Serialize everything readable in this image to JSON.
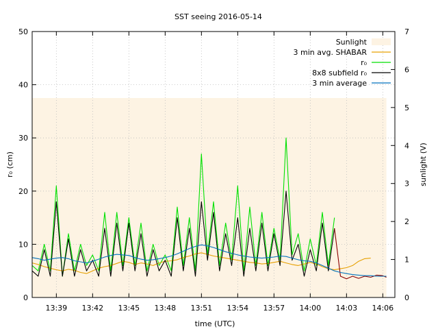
{
  "chart_data": {
    "type": "line",
    "title": "SST seeing 2016-05-14",
    "xlabel": "time (UTC)",
    "ylabel_left": "r₀ (cm)",
    "ylabel_right": "sunlight (V)",
    "xlim": [
      "13:37",
      "14:07"
    ],
    "ylim_left": [
      0,
      50
    ],
    "ylim_right": [
      0,
      7
    ],
    "x_ticks": [
      "13:39",
      "13:42",
      "13:45",
      "13:48",
      "13:51",
      "13:54",
      "13:57",
      "14:00",
      "14:03",
      "14:06"
    ],
    "y_ticks_left": [
      "0",
      "10",
      "20",
      "30",
      "40",
      "50"
    ],
    "y_ticks_right": [
      "0",
      "1",
      "2",
      "3",
      "4",
      "5",
      "6",
      "7"
    ],
    "grid": true,
    "legend_position": "top-right",
    "colors": {
      "sunlight": "#fdf3e3",
      "shabar": "#e6a000",
      "r0": "#00e000",
      "subfield": "#000000",
      "subfield_late": "#8b0000",
      "avg": "#0072bd"
    },
    "series": [
      {
        "name": "Sunlight",
        "axis": "right",
        "style": "fill",
        "x": [
          "13:37",
          "14:06.3"
        ],
        "y": [
          5.25,
          5.25
        ]
      },
      {
        "name": "3 min avg. SHABAR",
        "axis": "left",
        "x": [
          "13:37",
          "13:37.5",
          "13:38",
          "13:38.5",
          "13:39",
          "13:39.5",
          "13:40",
          "13:40.5",
          "13:41",
          "13:41.5",
          "13:42",
          "13:42.5",
          "13:43",
          "13:43.5",
          "13:44",
          "13:44.5",
          "13:45",
          "13:45.5",
          "13:46",
          "13:46.5",
          "13:47",
          "13:47.5",
          "13:48",
          "13:48.5",
          "13:49",
          "13:49.5",
          "13:50",
          "13:50.5",
          "13:51",
          "13:51.5",
          "13:52",
          "13:52.5",
          "13:53",
          "13:53.5",
          "13:54",
          "13:54.5",
          "13:55",
          "13:55.5",
          "13:56",
          "13:56.5",
          "13:57",
          "13:57.5",
          "13:58",
          "13:58.5",
          "13:59",
          "13:59.5",
          "14:00",
          "14:00.5",
          "14:01",
          "14:01.5",
          "14:02",
          "14:02.5",
          "14:03",
          "14:03.5",
          "14:04",
          "14:04.5",
          "14:05"
        ],
        "y": [
          6.5,
          6.2,
          5.8,
          5.5,
          5.2,
          5.0,
          5.3,
          5.1,
          4.7,
          4.5,
          5.0,
          5.5,
          5.8,
          6.0,
          6.4,
          6.8,
          6.6,
          6.2,
          6.5,
          6.3,
          6.0,
          6.5,
          6.8,
          6.9,
          7.1,
          7.5,
          7.8,
          8.2,
          8.4,
          8.1,
          7.8,
          7.6,
          7.4,
          7.2,
          7.0,
          6.8,
          6.6,
          6.5,
          6.3,
          6.4,
          6.6,
          6.8,
          6.5,
          6.2,
          6.0,
          6.3,
          6.6,
          6.3,
          5.8,
          5.4,
          5.2,
          5.4,
          5.6,
          6.0,
          6.8,
          7.3,
          7.4
        ]
      },
      {
        "name": "r₀",
        "axis": "left",
        "x": [
          "13:37",
          "13:37.5",
          "13:38",
          "13:38.5",
          "13:39",
          "13:39.5",
          "13:40",
          "13:40.5",
          "13:41",
          "13:41.5",
          "13:42",
          "13:42.5",
          "13:43",
          "13:43.5",
          "13:44",
          "13:44.5",
          "13:45",
          "13:45.5",
          "13:46",
          "13:46.5",
          "13:47",
          "13:47.5",
          "13:48",
          "13:48.5",
          "13:49",
          "13:49.5",
          "13:50",
          "13:50.5",
          "13:51",
          "13:51.5",
          "13:52",
          "13:52.5",
          "13:53",
          "13:53.5",
          "13:54",
          "13:54.5",
          "13:55",
          "13:55.5",
          "13:56",
          "13:56.5",
          "13:57",
          "13:57.5",
          "13:58",
          "13:58.5",
          "13:59",
          "13:59.5",
          "14:00",
          "14:00.5",
          "14:01",
          "14:01.5",
          "14:02"
        ],
        "y": [
          6,
          5,
          10,
          5,
          21,
          4,
          12,
          5,
          10,
          6,
          8,
          5,
          16,
          5,
          16,
          6,
          15,
          6,
          14,
          5,
          10,
          6,
          8,
          5,
          17,
          6,
          15,
          5,
          27,
          8,
          18,
          6,
          14,
          7,
          21,
          5,
          17,
          6,
          16,
          6,
          13,
          7,
          30,
          8,
          12,
          5,
          11,
          6,
          16,
          6,
          15
        ]
      },
      {
        "name": "8x8 subfield r₀",
        "axis": "left",
        "x": [
          "13:37",
          "13:37.5",
          "13:38",
          "13:38.5",
          "13:39",
          "13:39.5",
          "13:40",
          "13:40.5",
          "13:41",
          "13:41.5",
          "13:42",
          "13:42.5",
          "13:43",
          "13:43.5",
          "13:44",
          "13:44.5",
          "13:45",
          "13:45.5",
          "13:46",
          "13:46.5",
          "13:47",
          "13:47.5",
          "13:48",
          "13:48.5",
          "13:49",
          "13:49.5",
          "13:50",
          "13:50.5",
          "13:51",
          "13:51.5",
          "13:52",
          "13:52.5",
          "13:53",
          "13:53.5",
          "13:54",
          "13:54.5",
          "13:55",
          "13:55.5",
          "13:56",
          "13:56.5",
          "13:57",
          "13:57.5",
          "13:58",
          "13:58.5",
          "13:59",
          "13:59.5",
          "14:00",
          "14:00.5",
          "14:01",
          "14:01.5",
          "14:02",
          "14:02.5",
          "14:03",
          "14:03.5",
          "14:04",
          "14:04.5",
          "14:05",
          "14:05.5",
          "14:06",
          "14:06.3"
        ],
        "y": [
          5,
          4,
          9,
          4,
          18,
          4,
          11,
          4,
          9,
          5,
          7,
          4,
          13,
          4,
          14,
          5,
          14,
          5,
          12,
          4,
          9,
          5,
          7,
          4,
          15,
          5,
          13,
          4,
          18,
          7,
          16,
          5,
          12,
          6,
          15,
          4,
          13,
          5,
          14,
          5,
          12,
          6,
          20,
          7,
          10,
          4,
          9,
          5,
          14,
          5,
          13,
          4,
          3.5,
          4,
          3.6,
          4,
          3.8,
          4.2,
          4.1,
          3.8
        ]
      },
      {
        "name": "3 min average",
        "axis": "left",
        "x": [
          "13:37",
          "13:37.5",
          "13:38",
          "13:38.5",
          "13:39",
          "13:39.5",
          "13:40",
          "13:40.5",
          "13:41",
          "13:41.5",
          "13:42",
          "13:42.5",
          "13:43",
          "13:43.5",
          "13:44",
          "13:44.5",
          "13:45",
          "13:45.5",
          "13:46",
          "13:46.5",
          "13:47",
          "13:47.5",
          "13:48",
          "13:48.5",
          "13:49",
          "13:49.5",
          "13:50",
          "13:50.5",
          "13:51",
          "13:51.5",
          "13:52",
          "13:52.5",
          "13:53",
          "13:53.5",
          "13:54",
          "13:54.5",
          "13:55",
          "13:55.5",
          "13:56",
          "13:56.5",
          "13:57",
          "13:57.5",
          "13:58",
          "13:58.5",
          "13:59",
          "13:59.5",
          "14:00",
          "14:00.5",
          "14:01",
          "14:01.5",
          "14:02",
          "14:02.5",
          "14:03",
          "14:03.5",
          "14:04",
          "14:04.5",
          "14:05",
          "14:05.5",
          "14:06",
          "14:06.3"
        ],
        "y": [
          7.5,
          7.3,
          7.0,
          7.2,
          7.4,
          7.5,
          7.3,
          6.9,
          6.7,
          6.5,
          6.8,
          7.2,
          7.6,
          7.9,
          8.1,
          8.0,
          7.9,
          7.5,
          7.2,
          7.0,
          7.1,
          7.3,
          7.5,
          7.8,
          8.2,
          8.7,
          9.2,
          9.6,
          9.9,
          9.7,
          9.4,
          9.0,
          8.6,
          8.3,
          8.0,
          7.8,
          7.6,
          7.5,
          7.4,
          7.5,
          7.6,
          7.8,
          7.7,
          7.4,
          7.1,
          6.9,
          6.8,
          6.5,
          6.0,
          5.5,
          5.0,
          4.7,
          4.5,
          4.3,
          4.2,
          4.1,
          4.1,
          4.0,
          4.0,
          4.0
        ]
      }
    ]
  }
}
